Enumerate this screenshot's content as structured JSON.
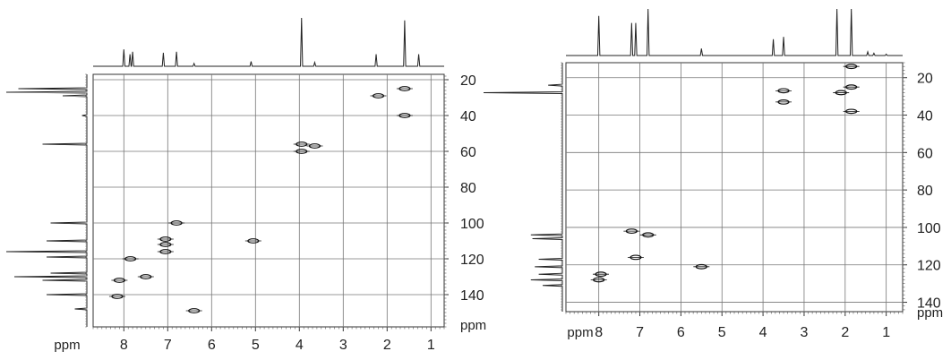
{
  "chart_data": [
    {
      "type": "scatter",
      "title": "",
      "xlabel": "ppm",
      "ylabel": "ppm",
      "x_reversed": true,
      "y_reversed": true,
      "xlim": [
        8.7,
        0.7
      ],
      "ylim": [
        17,
        158
      ],
      "x_ticks": [
        8,
        7,
        6,
        5,
        4,
        3,
        2,
        1
      ],
      "y_ticks": [
        20,
        40,
        60,
        80,
        100,
        120,
        140
      ],
      "grid": true,
      "cross_peaks": [
        {
          "x": 1.6,
          "y": 25
        },
        {
          "x": 2.2,
          "y": 29
        },
        {
          "x": 1.6,
          "y": 40
        },
        {
          "x": 3.95,
          "y": 56
        },
        {
          "x": 3.65,
          "y": 57
        },
        {
          "x": 3.95,
          "y": 60
        },
        {
          "x": 6.8,
          "y": 100
        },
        {
          "x": 7.05,
          "y": 109
        },
        {
          "x": 7.05,
          "y": 112
        },
        {
          "x": 7.05,
          "y": 116
        },
        {
          "x": 5.05,
          "y": 110
        },
        {
          "x": 7.85,
          "y": 120
        },
        {
          "x": 7.5,
          "y": 130
        },
        {
          "x": 8.1,
          "y": 132
        },
        {
          "x": 8.15,
          "y": 141
        },
        {
          "x": 6.4,
          "y": 149
        }
      ],
      "f2_projection_peaks": [
        {
          "x": 8.0,
          "h": 0.35
        },
        {
          "x": 7.86,
          "h": 0.25
        },
        {
          "x": 7.8,
          "h": 0.3
        },
        {
          "x": 7.1,
          "h": 0.28
        },
        {
          "x": 6.8,
          "h": 0.3
        },
        {
          "x": 6.4,
          "h": 0.06
        },
        {
          "x": 5.1,
          "h": 0.1
        },
        {
          "x": 3.95,
          "h": 1.0
        },
        {
          "x": 3.65,
          "h": 0.08
        },
        {
          "x": 2.25,
          "h": 0.25
        },
        {
          "x": 1.6,
          "h": 0.95
        },
        {
          "x": 1.28,
          "h": 0.25
        }
      ],
      "f1_projection_peaks": [
        {
          "y": 25,
          "h": 0.85
        },
        {
          "y": 27,
          "h": 1.0
        },
        {
          "y": 29,
          "h": 0.3
        },
        {
          "y": 40,
          "h": 0.06
        },
        {
          "y": 56,
          "h": 0.55
        },
        {
          "y": 100,
          "h": 0.45
        },
        {
          "y": 110,
          "h": 0.5
        },
        {
          "y": 116,
          "h": 1.0
        },
        {
          "y": 119,
          "h": 0.5
        },
        {
          "y": 128,
          "h": 0.45
        },
        {
          "y": 130,
          "h": 0.9
        },
        {
          "y": 132,
          "h": 0.55
        },
        {
          "y": 140,
          "h": 0.5
        },
        {
          "y": 148,
          "h": 0.15
        }
      ]
    },
    {
      "type": "scatter",
      "title": "",
      "xlabel": "ppm",
      "ylabel": "ppm",
      "x_reversed": true,
      "y_reversed": true,
      "xlim": [
        8.8,
        0.6
      ],
      "ylim": [
        12,
        145
      ],
      "x_ticks": [
        8,
        7,
        6,
        5,
        4,
        3,
        2,
        1
      ],
      "y_ticks": [
        20,
        40,
        60,
        80,
        100,
        120,
        140
      ],
      "grid": true,
      "cross_peaks": [
        {
          "x": 1.85,
          "y": 14
        },
        {
          "x": 1.85,
          "y": 25
        },
        {
          "x": 2.1,
          "y": 28
        },
        {
          "x": 3.5,
          "y": 27
        },
        {
          "x": 3.5,
          "y": 33
        },
        {
          "x": 1.85,
          "y": 38
        },
        {
          "x": 7.2,
          "y": 102
        },
        {
          "x": 6.8,
          "y": 104
        },
        {
          "x": 7.1,
          "y": 116
        },
        {
          "x": 5.5,
          "y": 121
        },
        {
          "x": 7.95,
          "y": 125
        },
        {
          "x": 8.0,
          "y": 128
        }
      ],
      "f2_projection_peaks": [
        {
          "x": 8.0,
          "h": 0.85
        },
        {
          "x": 7.2,
          "h": 0.7
        },
        {
          "x": 7.1,
          "h": 0.7
        },
        {
          "x": 6.8,
          "h": 1.0
        },
        {
          "x": 5.5,
          "h": 0.15
        },
        {
          "x": 3.75,
          "h": 0.35
        },
        {
          "x": 3.5,
          "h": 0.4
        },
        {
          "x": 2.2,
          "h": 1.0
        },
        {
          "x": 1.85,
          "h": 1.0
        },
        {
          "x": 1.45,
          "h": 0.08
        },
        {
          "x": 1.3,
          "h": 0.05
        },
        {
          "x": 1.0,
          "h": 0.03
        }
      ],
      "f1_projection_peaks": [
        {
          "y": 24,
          "h": 0.18
        },
        {
          "y": 28,
          "h": 1.0
        },
        {
          "y": 104,
          "h": 0.4
        },
        {
          "y": 106,
          "h": 0.38
        },
        {
          "y": 117,
          "h": 0.3
        },
        {
          "y": 121,
          "h": 0.35
        },
        {
          "y": 125,
          "h": 0.3
        },
        {
          "y": 128,
          "h": 0.4
        },
        {
          "y": 131,
          "h": 0.25
        }
      ]
    }
  ]
}
